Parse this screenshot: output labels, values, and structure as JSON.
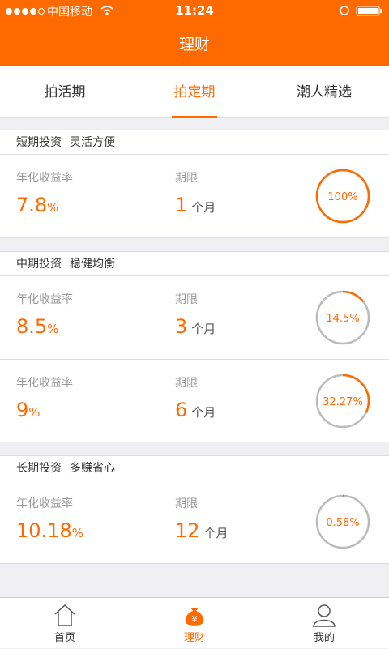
{
  "status_bar": {
    "carrier": "中国移动",
    "time": "11:24"
  },
  "header": {
    "title": "理财"
  },
  "tabs": {
    "items": [
      "拍活期",
      "拍定期",
      "潮人精选"
    ],
    "active": 1
  },
  "sections": [
    {
      "title": "短期投资",
      "subtitle": "灵活方便",
      "products": [
        {
          "rate_label": "年化收益率",
          "rate": "7.8",
          "rate_unit": "%",
          "term_label": "期限",
          "term": "1",
          "term_unit": "个月",
          "progress": {
            "value": 100,
            "label": "100%"
          }
        }
      ]
    },
    {
      "title": "中期投资",
      "subtitle": "稳健均衡",
      "products": [
        {
          "rate_label": "年化收益率",
          "rate": "8.5",
          "rate_unit": "%",
          "term_label": "期限",
          "term": "3",
          "term_unit": "个月",
          "progress": {
            "value": 14.5,
            "label": "14.5%"
          }
        },
        {
          "rate_label": "年化收益率",
          "rate": "9",
          "rate_unit": "%",
          "term_label": "期限",
          "term": "6",
          "term_unit": "个月",
          "progress": {
            "value": 32.27,
            "label": "32.27%"
          }
        }
      ]
    },
    {
      "title": "长期投资",
      "subtitle": "多赚省心",
      "products": [
        {
          "rate_label": "年化收益率",
          "rate": "10.18",
          "rate_unit": "%",
          "term_label": "期限",
          "term": "12",
          "term_unit": "个月",
          "progress": {
            "value": 0.58,
            "label": "0.58%"
          }
        }
      ]
    }
  ],
  "nav": {
    "items": [
      "首页",
      "理财",
      "我的"
    ],
    "active": 1
  }
}
